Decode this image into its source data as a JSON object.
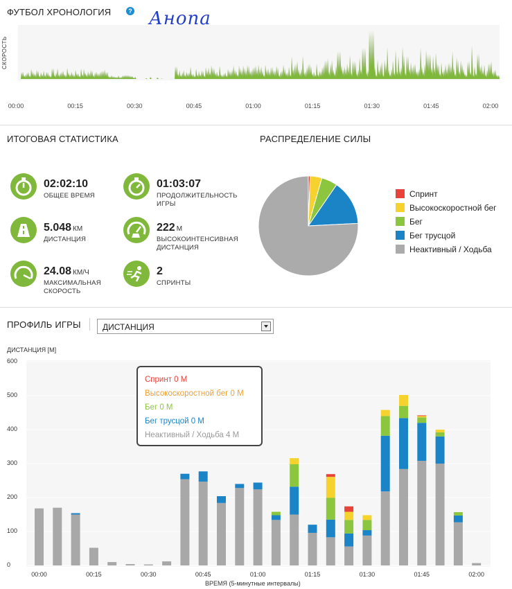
{
  "timeline": {
    "title": "ФУТБОЛ ХРОНОЛОГИЯ",
    "help_icon": "help-circle-icon",
    "handwritten_note": "Анопа",
    "y_label": "СКОРОСТЬ",
    "ticks": [
      "00:00",
      "00:15",
      "00:30",
      "00:45",
      "01:00",
      "01:15",
      "01:30",
      "01:45",
      "02:00"
    ],
    "color": "#7fb83a"
  },
  "summary": {
    "title": "ИТОГОВАЯ СТАТИСТИКА",
    "stats": [
      {
        "icon": "stopwatch-icon",
        "value": "02:02:10",
        "unit": "",
        "label": "ОБЩЕЕ ВРЕМЯ"
      },
      {
        "icon": "stopwatch-icon",
        "value": "01:03:07",
        "unit": "",
        "label": "ПРОДОЛЖИТЕЛЬНОСТЬ ИГРЫ"
      },
      {
        "icon": "road-icon",
        "value": "5.048",
        "unit": "КМ",
        "label": "ДИСТАНЦИЯ"
      },
      {
        "icon": "gauge-high-intensity-icon",
        "value": "222",
        "unit": "М",
        "label": "ВЫСОКОИНТЕНСИВНАЯ ДИСТАНЦИЯ"
      },
      {
        "icon": "speedometer-icon",
        "value": "24.08",
        "unit": "КМ/Ч",
        "label": "МАКСИМАЛЬНАЯ СКОРОСТЬ"
      },
      {
        "icon": "sprinter-icon",
        "value": "2",
        "unit": "",
        "label": "СПРИНТЫ"
      }
    ]
  },
  "power": {
    "title": "РАСПРЕДЕЛЕНИЕ СИЛЫ",
    "chart_data": {
      "type": "pie",
      "labels": [
        "Спринт",
        "Высокоскоростной бег",
        "Бег",
        "Бег трусцой",
        "Неактивный / Ходьба"
      ],
      "values": [
        0.6,
        3.8,
        5.2,
        14.6,
        75.8
      ],
      "colors": [
        "#e8433b",
        "#f5d22e",
        "#8cc63f",
        "#1a84c7",
        "#ababab"
      ]
    }
  },
  "profile": {
    "title": "ПРОФИЛЬ ИГРЫ",
    "dropdown_value": "ДИСТАНЦИЯ",
    "y_axis_title": "ДИСТАНЦИЯ [М]",
    "x_axis_title": "ВРЕМЯ (5-минутные интервалы)",
    "tooltip": [
      {
        "text": "Спринт 0 М",
        "color": "#e8433b"
      },
      {
        "text": "Высокоскоростной бег 0 М",
        "color": "#f0a030"
      },
      {
        "text": "Бег 0 М",
        "color": "#8cc63f"
      },
      {
        "text": "Бег трусцой 0 М",
        "color": "#1a84c7"
      },
      {
        "text": "Неактивный / Ходьба 4 М",
        "color": "#9a9a9a"
      }
    ],
    "chart_data": {
      "type": "bar",
      "stacked": true,
      "ylim": [
        0,
        600
      ],
      "yticks": [
        "0",
        "100",
        "200",
        "300",
        "400",
        "500",
        "600"
      ],
      "xticks": [
        "00:00",
        "00:15",
        "00:30",
        "00:45",
        "01:00",
        "01:15",
        "01:30",
        "01:45",
        "02:00"
      ],
      "categories": [
        "00:00",
        "00:05",
        "00:10",
        "00:15",
        "00:20",
        "00:25",
        "00:30",
        "00:35",
        "00:40",
        "00:45",
        "00:50",
        "00:55",
        "01:00",
        "01:05",
        "01:10",
        "01:15",
        "01:20",
        "01:25",
        "01:30",
        "01:35",
        "01:40",
        "01:45",
        "01:50",
        "01:55",
        "02:00"
      ],
      "series": [
        {
          "name": "Неактивный / Ходьба",
          "color": "#a8a8a8",
          "values": [
            168,
            170,
            150,
            52,
            10,
            4,
            3,
            12,
            254,
            247,
            184,
            228,
            224,
            134,
            150,
            96,
            83,
            56,
            88,
            218,
            284,
            308,
            300,
            127,
            7
          ]
        },
        {
          "name": "Бег трусцой",
          "color": "#1a84c7",
          "values": [
            0,
            0,
            4,
            0,
            0,
            0,
            0,
            0,
            16,
            30,
            20,
            12,
            20,
            14,
            82,
            24,
            52,
            38,
            16,
            164,
            150,
            112,
            80,
            20,
            0
          ]
        },
        {
          "name": "Бег",
          "color": "#8cc63f",
          "values": [
            0,
            0,
            0,
            0,
            0,
            0,
            0,
            0,
            0,
            0,
            0,
            0,
            0,
            10,
            66,
            0,
            64,
            40,
            30,
            58,
            36,
            16,
            12,
            10,
            0
          ]
        },
        {
          "name": "Высокоскоростной бег",
          "color": "#f5d22e",
          "values": [
            0,
            0,
            0,
            0,
            0,
            0,
            0,
            0,
            0,
            0,
            0,
            0,
            0,
            0,
            18,
            0,
            62,
            24,
            14,
            18,
            32,
            4,
            8,
            0,
            0
          ]
        },
        {
          "name": "Спринт",
          "color": "#e8433b",
          "values": [
            0,
            0,
            0,
            0,
            0,
            0,
            0,
            0,
            0,
            0,
            0,
            0,
            0,
            0,
            0,
            0,
            8,
            16,
            0,
            0,
            0,
            2,
            0,
            0,
            0
          ]
        }
      ]
    }
  }
}
